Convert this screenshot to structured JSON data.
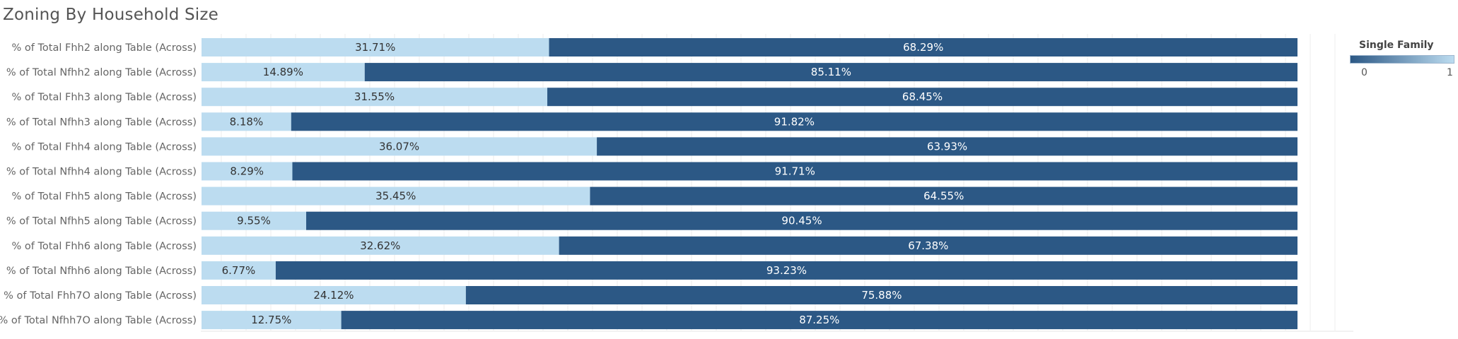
{
  "title": "Zoning By Household Size",
  "legend": {
    "title": "Single Family",
    "min_label": "0",
    "max_label": "1"
  },
  "colors": {
    "light_segment": "#bcdcf0",
    "dark_segment": "#2c5885",
    "light_text": "#333333",
    "dark_text": "#ffffff",
    "gridline": "#ececec"
  },
  "chart_data": {
    "type": "bar",
    "orientation": "horizontal",
    "stacked": true,
    "normalized": true,
    "title": "Zoning By Household Size",
    "categories": [
      "% of Total Fhh2 along Table (Across)",
      "% of Total Nfhh2 along Table (Across)",
      "% of Total Fhh3 along Table (Across)",
      "% of Total Nfhh3 along Table (Across)",
      "% of Total Fhh4 along Table (Across)",
      "% of Total Nfhh4 along Table (Across)",
      "% of Total Fhh5 along Table (Across)",
      "% of Total Nfhh5 along Table (Across)",
      "% of Total Fhh6 along Table (Across)",
      "% of Total Nfhh6 along Table (Across)",
      "% of Total Fhh7O along Table (Across)",
      "% of Total Nfhh7O along Table (Across)"
    ],
    "series": [
      {
        "values": [
          31.71,
          14.89,
          31.55,
          8.18,
          36.07,
          8.29,
          35.45,
          9.55,
          32.62,
          6.77,
          24.12,
          12.75
        ],
        "labels": [
          "31.71%",
          "14.89%",
          "31.55%",
          "8.18%",
          "36.07%",
          "8.29%",
          "35.45%",
          "9.55%",
          "32.62%",
          "6.77%",
          "24.12%",
          "12.75%"
        ],
        "color": "#bcdcf0"
      },
      {
        "values": [
          68.29,
          85.11,
          68.45,
          91.82,
          63.93,
          91.71,
          64.55,
          90.45,
          67.38,
          93.23,
          75.88,
          87.25
        ],
        "labels": [
          "68.29%",
          "85.11%",
          "68.45%",
          "91.82%",
          "63.93%",
          "91.71%",
          "64.55%",
          "90.45%",
          "67.38%",
          "93.23%",
          "75.88%",
          "87.25%"
        ],
        "color": "#2c5885"
      }
    ],
    "xlim": [
      0,
      100
    ],
    "grid": true,
    "legend_position": "top-right",
    "color_scale": {
      "name": "Single Family",
      "min": 0,
      "max": 1
    }
  }
}
